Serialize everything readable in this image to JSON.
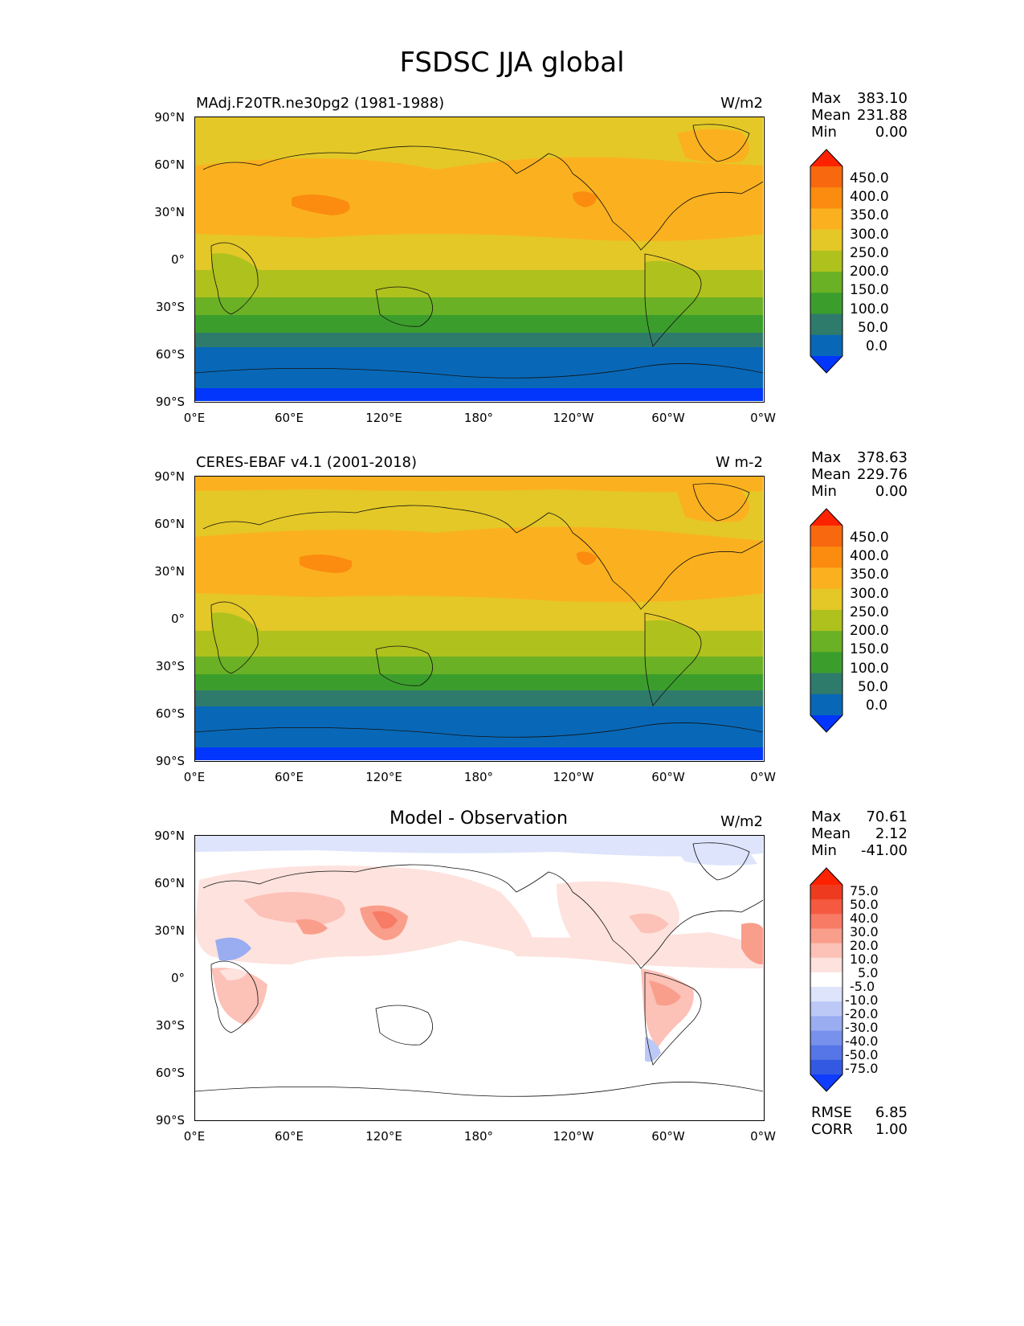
{
  "figure": {
    "title": "FSDSC JJA global"
  },
  "axes": {
    "lat_ticks": [
      "90°N",
      "60°N",
      "30°N",
      "0°",
      "30°S",
      "60°S",
      "90°S"
    ],
    "lon_ticks": [
      "0°E",
      "60°E",
      "120°E",
      "180°",
      "120°W",
      "60°W",
      "0°W"
    ]
  },
  "panels": [
    {
      "id": "model",
      "left_title": "MAdj.F20TR.ne30pg2 (1981-1988)",
      "center_title": "",
      "units": "W/m2",
      "stats": {
        "max_label": "Max",
        "max": "383.10",
        "mean_label": "Mean",
        "mean": "231.88",
        "min_label": "Min",
        "min": "0.00"
      },
      "colorbar": {
        "labels": [
          "450.0",
          "400.0",
          "350.0",
          "300.0",
          "250.0",
          "200.0",
          "150.0",
          "100.0",
          "50.0",
          "0.0"
        ],
        "colors": [
          "#ff2200",
          "#f7680f",
          "#fb8c10",
          "#fbb11f",
          "#e4c827",
          "#afc11d",
          "#6ab125",
          "#3b9e2c",
          "#2f7b6b",
          "#0868b7",
          "#0236fc"
        ]
      }
    },
    {
      "id": "obs",
      "left_title": "CERES-EBAF v4.1 (2001-2018)",
      "center_title": "",
      "units": "W m-2",
      "stats": {
        "max_label": "Max",
        "max": "378.63",
        "mean_label": "Mean",
        "mean": "229.76",
        "min_label": "Min",
        "min": "0.00"
      },
      "colorbar": {
        "labels": [
          "450.0",
          "400.0",
          "350.0",
          "300.0",
          "250.0",
          "200.0",
          "150.0",
          "100.0",
          "50.0",
          "0.0"
        ],
        "colors": [
          "#ff2200",
          "#f7680f",
          "#fb8c10",
          "#fbb11f",
          "#e4c827",
          "#afc11d",
          "#6ab125",
          "#3b9e2c",
          "#2f7b6b",
          "#0868b7",
          "#0236fc"
        ]
      }
    },
    {
      "id": "diff",
      "left_title": "",
      "center_title": "Model - Observation",
      "units": "W/m2",
      "stats": {
        "max_label": "Max",
        "max": "70.61",
        "mean_label": "Mean",
        "mean": "2.12",
        "min_label": "Min",
        "min": "-41.00",
        "rmse_label": "RMSE",
        "rmse": "6.85",
        "corr_label": "CORR",
        "corr": "1.00"
      },
      "colorbar": {
        "labels": [
          "75.0",
          "50.0",
          "40.0",
          "30.0",
          "20.0",
          "10.0",
          "5.0",
          "-5.0",
          "-10.0",
          "-20.0",
          "-30.0",
          "-40.0",
          "-50.0",
          "-75.0"
        ],
        "colors": [
          "#ff2200",
          "#ee3b20",
          "#f55a40",
          "#f87b66",
          "#fa9e8c",
          "#fcc1b7",
          "#fee2dd",
          "#ffffff",
          "#dde4fb",
          "#bcc9f6",
          "#9aadf1",
          "#7891ec",
          "#5675e7",
          "#3359e2",
          "#103cfd"
        ]
      }
    }
  ]
}
